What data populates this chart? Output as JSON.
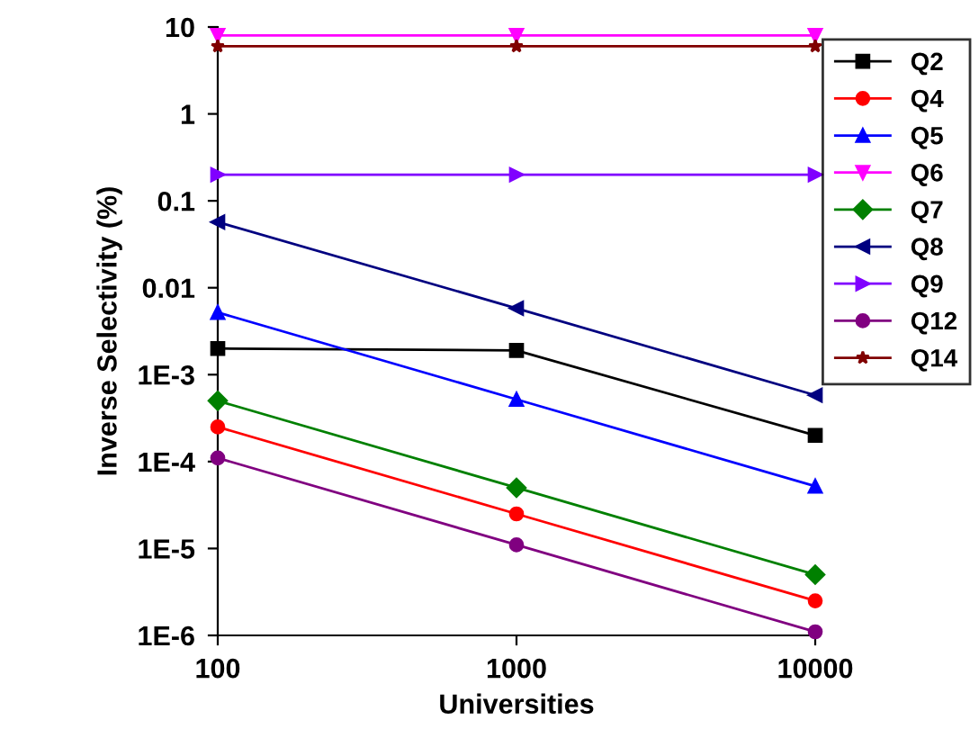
{
  "chart_data": {
    "type": "line",
    "xlabel": "Universities",
    "ylabel": "Inverse Selectivity (%)",
    "log": "xy",
    "x": [
      100,
      1000,
      10000
    ],
    "xlim": [
      100,
      10000
    ],
    "xticks": [
      100,
      1000,
      10000
    ],
    "ylim": [
      1e-06,
      10
    ],
    "yticks": [
      {
        "value": 1e-06,
        "label": "1E-6"
      },
      {
        "value": 1e-05,
        "label": "1E-5"
      },
      {
        "value": 0.0001,
        "label": "1E-4"
      },
      {
        "value": 0.001,
        "label": "1E-3"
      },
      0.01,
      0.1,
      1,
      10
    ],
    "grid": false,
    "legend": "top right",
    "line_style": "solid",
    "series": [
      {
        "name": "Q2",
        "color": "#000000",
        "marker": "square",
        "values": [
          0.002,
          0.0019,
          0.0002
        ]
      },
      {
        "name": "Q4",
        "color": "#ff0000",
        "marker": "circle",
        "values": [
          0.00025,
          2.5e-05,
          2.5e-06
        ]
      },
      {
        "name": "Q5",
        "color": "#0000ff",
        "marker": "triangle",
        "values": [
          0.0052,
          0.00052,
          5.2e-05
        ]
      },
      {
        "name": "Q6",
        "color": "#ff00ff",
        "marker": "triangle-down",
        "values": [
          8,
          8,
          8
        ]
      },
      {
        "name": "Q7",
        "color": "#008000",
        "marker": "diamond",
        "values": [
          0.0005,
          5e-05,
          5e-06
        ]
      },
      {
        "name": "Q8",
        "color": "#000080",
        "marker": "triangle-left",
        "values": [
          0.057,
          0.0058,
          0.00058
        ]
      },
      {
        "name": "Q9",
        "color": "#8000ff",
        "marker": "triangle-right",
        "values": [
          0.2,
          0.2,
          0.2
        ]
      },
      {
        "name": "Q12",
        "color": "#800080",
        "marker": "circle",
        "values": [
          0.00011,
          1.1e-05,
          1.1e-06
        ]
      },
      {
        "name": "Q14",
        "color": "#800000",
        "marker": "star",
        "values": [
          6,
          6,
          6
        ]
      }
    ]
  }
}
